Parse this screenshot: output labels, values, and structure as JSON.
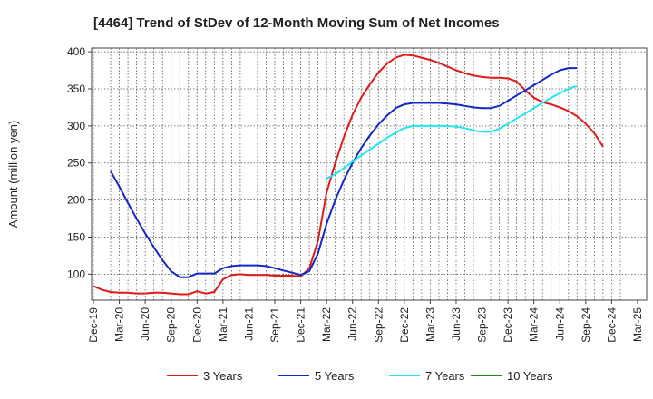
{
  "chart_data": {
    "type": "line",
    "title": "[4464]  Trend of StDev of 12-Month Moving Sum of Net Incomes",
    "ylabel": "Amount (million yen)",
    "xlabel": "",
    "ylim": [
      65,
      405
    ],
    "yticks": [
      100,
      150,
      200,
      250,
      300,
      350,
      400
    ],
    "xticks": [
      "Dec-19",
      "Mar-20",
      "Jun-20",
      "Sep-20",
      "Dec-20",
      "Mar-21",
      "Jun-21",
      "Sep-21",
      "Dec-21",
      "Mar-22",
      "Jun-22",
      "Sep-22",
      "Dec-22",
      "Mar-23",
      "Jun-23",
      "Sep-23",
      "Dec-23",
      "Mar-24",
      "Jun-24",
      "Sep-24",
      "Dec-24",
      "Mar-25"
    ],
    "grid": true,
    "legend_position": "bottom",
    "series": [
      {
        "name": "3 Years",
        "color": "#dd1c1c",
        "values": [
          84,
          79,
          76,
          75,
          75,
          74,
          74,
          75,
          75,
          74,
          73,
          73,
          77,
          74,
          76,
          93,
          99,
          100,
          99,
          99,
          99,
          98,
          98,
          98,
          97,
          108,
          145,
          210,
          250,
          285,
          315,
          338,
          356,
          372,
          384,
          392,
          396,
          395,
          392,
          389,
          385,
          380,
          375,
          371,
          368,
          366,
          365,
          365,
          364,
          360,
          348,
          338,
          332,
          329,
          325,
          320,
          313,
          303,
          290,
          272
        ]
      },
      {
        "name": "5 Years",
        "color": "#1428c8",
        "values": [
          null,
          null,
          239,
          218,
          196,
          175,
          155,
          136,
          119,
          104,
          96,
          96,
          101,
          101,
          101,
          108,
          111,
          112,
          112,
          112,
          111,
          108,
          105,
          102,
          99,
          104,
          128,
          168,
          200,
          227,
          250,
          270,
          287,
          302,
          314,
          324,
          329,
          331,
          331,
          331,
          331,
          330,
          329,
          327,
          325,
          324,
          324,
          327,
          334,
          341,
          348,
          355,
          362,
          369,
          375,
          378,
          378
        ]
      },
      {
        "name": "7 Years",
        "color": "#22e6ee",
        "values": [
          null,
          null,
          null,
          null,
          null,
          null,
          null,
          null,
          null,
          null,
          null,
          null,
          null,
          null,
          null,
          null,
          null,
          null,
          null,
          null,
          null,
          null,
          null,
          null,
          null,
          null,
          null,
          229,
          235,
          243,
          252,
          260,
          268,
          276,
          284,
          291,
          297,
          300,
          300,
          300,
          300,
          300,
          299,
          297,
          294,
          292,
          292,
          296,
          303,
          310,
          317,
          324,
          331,
          338,
          344,
          350,
          354
        ]
      },
      {
        "name": "10 Years",
        "color": "#1f8a1f",
        "values": []
      }
    ]
  }
}
